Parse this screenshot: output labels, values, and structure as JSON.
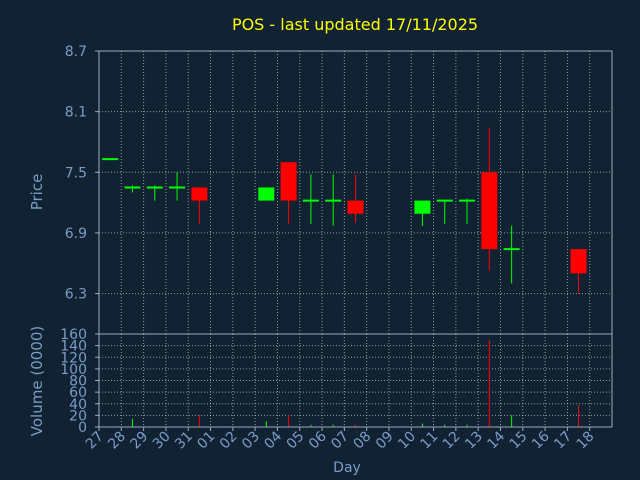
{
  "colors": {
    "background": "#112233",
    "title": "#ffff00",
    "axis_text": "#7a9cc7",
    "frame": "#9aa9bb",
    "grid": "#c8d0da",
    "up": "#00ff00",
    "down": "#ff0000"
  },
  "chart_data": [
    {
      "type": "candlestick",
      "title": "POS - last updated 17/11/2025",
      "ylabel": "Price",
      "ylim": [
        5.9,
        8.7
      ],
      "yticks": [
        "8.7",
        "8.1",
        "7.5",
        "6.9",
        "6.3"
      ],
      "ytick_values": [
        8.7,
        8.1,
        7.5,
        6.9,
        6.3
      ],
      "grid": true,
      "x": [
        "27",
        "28",
        "29",
        "30",
        "31",
        "01",
        "02",
        "03",
        "04",
        "05",
        "06",
        "07",
        "08",
        "09",
        "10",
        "11",
        "12",
        "13",
        "14",
        "15",
        "16",
        "17",
        "18"
      ],
      "candles": [
        {
          "day": "27",
          "open": 7.63,
          "high": 7.63,
          "low": 7.63,
          "close": 7.63
        },
        {
          "day": "28",
          "open": 7.35,
          "high": 7.37,
          "low": 7.3,
          "close": 7.35
        },
        {
          "day": "29",
          "open": 7.35,
          "high": 7.37,
          "low": 7.22,
          "close": 7.35
        },
        {
          "day": "30",
          "open": 7.35,
          "high": 7.5,
          "low": 7.22,
          "close": 7.35
        },
        {
          "day": "31",
          "open": 7.35,
          "high": 7.35,
          "low": 6.99,
          "close": 7.22
        },
        {
          "day": "03",
          "open": 7.22,
          "high": 7.35,
          "low": 7.22,
          "close": 7.35
        },
        {
          "day": "04",
          "open": 7.6,
          "high": 7.6,
          "low": 6.99,
          "close": 7.22
        },
        {
          "day": "05",
          "open": 7.22,
          "high": 7.48,
          "low": 6.99,
          "close": 7.22
        },
        {
          "day": "06",
          "open": 7.22,
          "high": 7.48,
          "low": 6.97,
          "close": 7.22
        },
        {
          "day": "07",
          "open": 7.22,
          "high": 7.48,
          "low": 7.0,
          "close": 7.09
        },
        {
          "day": "10",
          "open": 7.09,
          "high": 7.22,
          "low": 6.97,
          "close": 7.22
        },
        {
          "day": "11",
          "open": 7.22,
          "high": 7.22,
          "low": 6.99,
          "close": 7.22
        },
        {
          "day": "12",
          "open": 7.22,
          "high": 7.24,
          "low": 6.99,
          "close": 7.22
        },
        {
          "day": "13",
          "open": 7.5,
          "high": 7.94,
          "low": 6.53,
          "close": 6.74
        },
        {
          "day": "14",
          "open": 6.74,
          "high": 6.97,
          "low": 6.4,
          "close": 6.74
        },
        {
          "day": "17",
          "open": 6.74,
          "high": 6.74,
          "low": 6.3,
          "close": 6.5
        }
      ]
    },
    {
      "type": "bar",
      "ylabel": "Volume (0000)",
      "xlabel": "Day",
      "ylim": [
        0,
        160
      ],
      "yticks": [
        "160",
        "140",
        "120",
        "100",
        "80",
        "60",
        "40",
        "20",
        "0"
      ],
      "ytick_values": [
        160,
        140,
        120,
        100,
        80,
        60,
        40,
        20,
        0
      ],
      "grid": true,
      "bars": [
        {
          "day": "28",
          "value": 14,
          "direction": "up"
        },
        {
          "day": "31",
          "value": 20,
          "direction": "down"
        },
        {
          "day": "03",
          "value": 10,
          "direction": "up"
        },
        {
          "day": "04",
          "value": 20,
          "direction": "down"
        },
        {
          "day": "05",
          "value": 4,
          "direction": "up"
        },
        {
          "day": "06",
          "value": 4,
          "direction": "up"
        },
        {
          "day": "07",
          "value": 4,
          "direction": "down"
        },
        {
          "day": "10",
          "value": 6,
          "direction": "up"
        },
        {
          "day": "11",
          "value": 4,
          "direction": "up"
        },
        {
          "day": "12",
          "value": 4,
          "direction": "up"
        },
        {
          "day": "13",
          "value": 150,
          "direction": "down"
        },
        {
          "day": "14",
          "value": 20,
          "direction": "up"
        },
        {
          "day": "17",
          "value": 38,
          "direction": "down"
        }
      ]
    }
  ]
}
